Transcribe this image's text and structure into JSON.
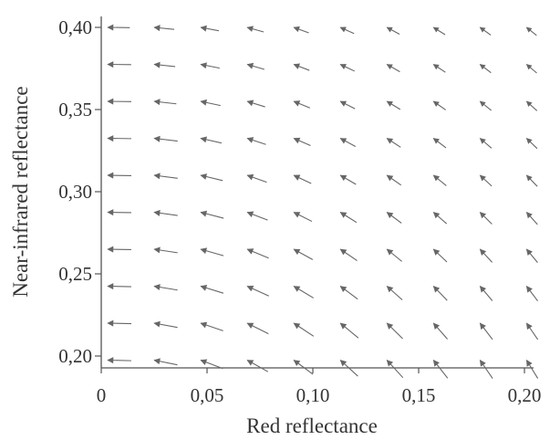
{
  "chart_data": {
    "type": "quiver",
    "xlabel": "Red reflectance",
    "ylabel": "Near-infrared reflectance",
    "xlim": [
      0,
      0.2
    ],
    "ylim": [
      0.195,
      0.4
    ],
    "xticks": [
      0,
      0.05,
      0.1,
      0.15,
      0.2
    ],
    "xtick_labels": [
      "0",
      "0,05",
      "0,10",
      "0,15",
      "0,20"
    ],
    "yticks": [
      0.2,
      0.25,
      0.3,
      0.35,
      0.4
    ],
    "ytick_labels": [
      "0,20",
      "0,25",
      "0,30",
      "0,35",
      "0,40"
    ],
    "grid": false,
    "x": [
      0.003,
      0.025,
      0.047,
      0.069,
      0.091,
      0.113,
      0.135,
      0.157,
      0.179,
      0.201
    ],
    "y": [
      0.4,
      0.3775,
      0.355,
      0.3325,
      0.31,
      0.2875,
      0.265,
      0.2425,
      0.22,
      0.1975
    ],
    "field": "dx = -k * NIR / (NIR + R)^2, dy = k * R / (NIR + R)^2 (vectors point up-left, longest at low red reflectance)",
    "arrow_color": "#666666"
  }
}
